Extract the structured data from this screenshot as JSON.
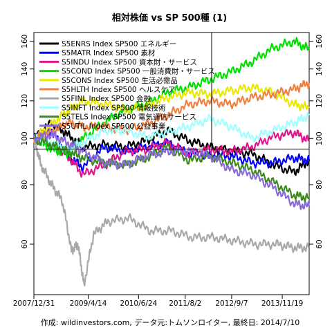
{
  "chart_data": {
    "type": "line",
    "title": "相対株価 vs SP 500種 (1)",
    "caption": "作成: wildinvestors.com, データ元:トムソンロイター, 最終日: 2014/7/10",
    "x_ticks": [
      "2007/12/31",
      "2009/4/14",
      "2010/6/24",
      "2011/8/2",
      "2012/9/7",
      "2013/11/19"
    ],
    "x_range": [
      "2007-12-31",
      "2014-07-10"
    ],
    "y_ticks": [
      60,
      80,
      100,
      120,
      140,
      160
    ],
    "y_scale": "log",
    "ylim": [
      47,
      167
    ],
    "reference_line": 95,
    "grid": false,
    "legend_position": "top-left",
    "series": [
      {
        "name": "S5ENRS Index SP500 エネルギー",
        "color": "#000000",
        "x": [
          "2007-12-31",
          "2008-06-01",
          "2008-10-15",
          "2009-03-01",
          "2009-09-01",
          "2010-03-01",
          "2010-09-01",
          "2011-03-01",
          "2011-09-01",
          "2012-03-01",
          "2012-09-01",
          "2013-03-01",
          "2013-09-01",
          "2014-03-01",
          "2014-07-10"
        ],
        "values": [
          100,
          108,
          102,
          96,
          97,
          96,
          99,
          104,
          99,
          96,
          94,
          93,
          88,
          85,
          90
        ]
      },
      {
        "name": "S5MATR Index SP500 素材",
        "color": "#0000ff",
        "x": [
          "2007-12-31",
          "2008-06-01",
          "2008-10-15",
          "2009-03-01",
          "2009-09-01",
          "2010-03-01",
          "2010-09-01",
          "2011-03-01",
          "2011-09-01",
          "2012-03-01",
          "2012-09-01",
          "2013-03-01",
          "2013-09-01",
          "2014-03-01",
          "2014-07-10"
        ],
        "values": [
          100,
          104,
          92,
          87,
          96,
          94,
          96,
          98,
          93,
          92,
          92,
          89,
          89,
          91,
          90
        ]
      },
      {
        "name": "S5INDU Index SP500 資本財・サービス",
        "color": "#e0148c",
        "x": [
          "2007-12-31",
          "2008-06-01",
          "2008-10-15",
          "2009-03-01",
          "2009-09-01",
          "2010-03-01",
          "2010-09-01",
          "2011-03-01",
          "2011-09-01",
          "2012-03-01",
          "2012-09-01",
          "2013-03-01",
          "2013-09-01",
          "2014-03-01",
          "2014-07-10"
        ],
        "values": [
          100,
          97,
          92,
          84,
          88,
          94,
          95,
          98,
          93,
          95,
          94,
          96,
          101,
          103,
          99
        ]
      },
      {
        "name": "S5COND Index SP500 一般消費財・サービス",
        "color": "#00e000",
        "x": [
          "2007-12-31",
          "2008-06-01",
          "2008-10-15",
          "2009-03-01",
          "2009-09-01",
          "2010-03-01",
          "2010-09-01",
          "2011-03-01",
          "2011-09-01",
          "2012-03-01",
          "2012-09-01",
          "2013-03-01",
          "2013-09-01",
          "2014-03-01",
          "2014-07-10"
        ],
        "values": [
          100,
          95,
          93,
          100,
          108,
          115,
          118,
          125,
          128,
          133,
          138,
          145,
          155,
          160,
          154
        ]
      },
      {
        "name": "S5CONS Index SP500 生活必需品",
        "color": "#e8e800",
        "x": [
          "2007-12-31",
          "2008-06-01",
          "2008-10-15",
          "2009-03-01",
          "2009-09-01",
          "2010-03-01",
          "2010-09-01",
          "2011-03-01",
          "2011-09-01",
          "2012-03-01",
          "2012-09-01",
          "2013-03-01",
          "2013-09-01",
          "2014-03-01",
          "2014-07-10"
        ],
        "values": [
          100,
          107,
          114,
          120,
          118,
          115,
          117,
          122,
          125,
          124,
          126,
          128,
          125,
          118,
          116
        ]
      },
      {
        "name": "S5HLTH Index SP500 ヘルスケア",
        "color": "#f08040",
        "x": [
          "2007-12-31",
          "2008-06-01",
          "2008-10-15",
          "2009-03-01",
          "2009-09-01",
          "2010-03-01",
          "2010-09-01",
          "2011-03-01",
          "2011-09-01",
          "2012-03-01",
          "2012-09-01",
          "2013-03-01",
          "2013-09-01",
          "2014-03-01",
          "2014-07-10"
        ],
        "values": [
          100,
          103,
          108,
          106,
          106,
          104,
          107,
          112,
          118,
          120,
          118,
          122,
          124,
          127,
          131
        ]
      },
      {
        "name": "S5FINL Index SP500 金融",
        "color": "#a8a8a8",
        "x": [
          "2007-12-31",
          "2008-03-01",
          "2008-06-01",
          "2008-09-01",
          "2008-11-20",
          "2009-01-15",
          "2009-03-09",
          "2009-06-01",
          "2009-10-01",
          "2010-04-01",
          "2010-10-01",
          "2011-04-01",
          "2011-10-01",
          "2012-04-01",
          "2012-10-01",
          "2013-04-01",
          "2013-10-01",
          "2014-03-01",
          "2014-07-10"
        ],
        "values": [
          100,
          88,
          80,
          74,
          58,
          60,
          49,
          63,
          67,
          68,
          64,
          64,
          62,
          62,
          61,
          60,
          60,
          59,
          59
        ]
      },
      {
        "name": "S5INFT Index SP500 情報技術",
        "color": "#a0ffff",
        "x": [
          "2007-12-31",
          "2008-06-01",
          "2008-10-15",
          "2009-03-01",
          "2009-09-01",
          "2010-03-01",
          "2010-09-01",
          "2011-03-01",
          "2011-09-01",
          "2012-03-01",
          "2012-09-01",
          "2013-03-01",
          "2013-09-01",
          "2014-03-01",
          "2014-07-10"
        ],
        "values": [
          100,
          98,
          95,
          98,
          104,
          104,
          101,
          103,
          106,
          110,
          106,
          100,
          104,
          108,
          112
        ]
      },
      {
        "name": "S5TELS Index SP500 電気通信サービス",
        "color": "#3a8a1a",
        "x": [
          "2007-12-31",
          "2008-06-01",
          "2008-10-15",
          "2009-03-01",
          "2009-09-01",
          "2010-03-01",
          "2010-09-01",
          "2011-03-01",
          "2011-09-01",
          "2012-03-01",
          "2012-09-01",
          "2013-03-01",
          "2013-09-01",
          "2014-03-01",
          "2014-07-10"
        ],
        "values": [
          100,
          97,
          94,
          91,
          89,
          88,
          91,
          96,
          90,
          92,
          89,
          86,
          81,
          76,
          75
        ]
      },
      {
        "name": "S5UTIL Index SP500 公益事業",
        "color": "#8a6ad6",
        "x": [
          "2007-12-31",
          "2008-06-01",
          "2008-10-15",
          "2009-03-01",
          "2009-09-01",
          "2010-03-01",
          "2010-09-01",
          "2011-03-01",
          "2011-09-01",
          "2012-03-01",
          "2012-09-01",
          "2013-03-01",
          "2013-09-01",
          "2014-03-01",
          "2014-07-10"
        ],
        "values": [
          100,
          102,
          98,
          94,
          89,
          88,
          92,
          94,
          94,
          92,
          86,
          84,
          79,
          73,
          72
        ]
      }
    ]
  }
}
